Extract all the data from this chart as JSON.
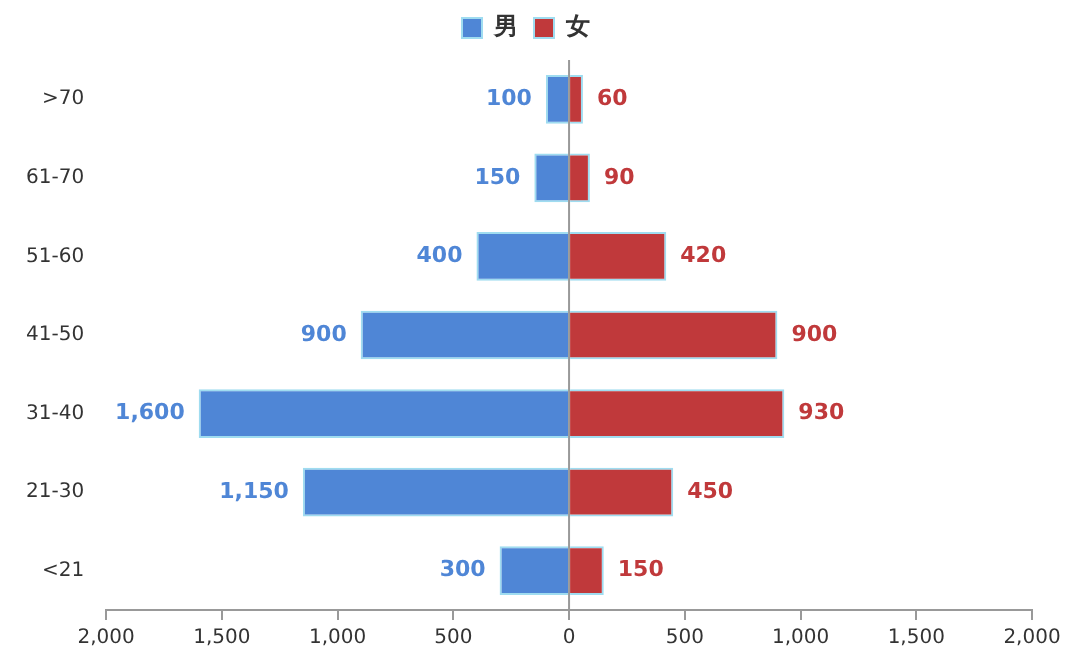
{
  "chart_data": {
    "type": "bar",
    "orientation": "horizontal",
    "categories": [
      ">70",
      "61-70",
      "51-60",
      "41-50",
      "31-40",
      "21-30",
      "<21"
    ],
    "series": [
      {
        "name": "男",
        "color": "#4f86d6",
        "values": [
          100,
          150,
          400,
          900,
          1600,
          1150,
          300
        ],
        "base": [
          -100,
          -150,
          -400,
          -900,
          -1600,
          -1150,
          -300
        ],
        "value_labels": [
          "100",
          "150",
          "400",
          "900",
          "1,600",
          "1,150",
          "300"
        ]
      },
      {
        "name": "女",
        "color": "#c0393b",
        "values": [
          60,
          90,
          420,
          900,
          930,
          450,
          150
        ],
        "value_labels": [
          "60",
          "90",
          "420",
          "900",
          "930",
          "450",
          "150"
        ]
      }
    ],
    "xlim": [
      -2000,
      2000
    ],
    "xticks": [
      {
        "value": -2000,
        "label": "2,000"
      },
      {
        "value": -1500,
        "label": "1,500"
      },
      {
        "value": -1000,
        "label": "1,000"
      },
      {
        "value": -500,
        "label": "500"
      },
      0,
      500,
      {
        "value": 1000,
        "label": "1,000"
      },
      {
        "value": 1500,
        "label": "1,500"
      },
      {
        "value": 2000,
        "label": "2,000"
      }
    ],
    "ref_lines": [
      {
        "axis": "x",
        "value": 0,
        "color": "#999999"
      }
    ],
    "legend": "top"
  }
}
